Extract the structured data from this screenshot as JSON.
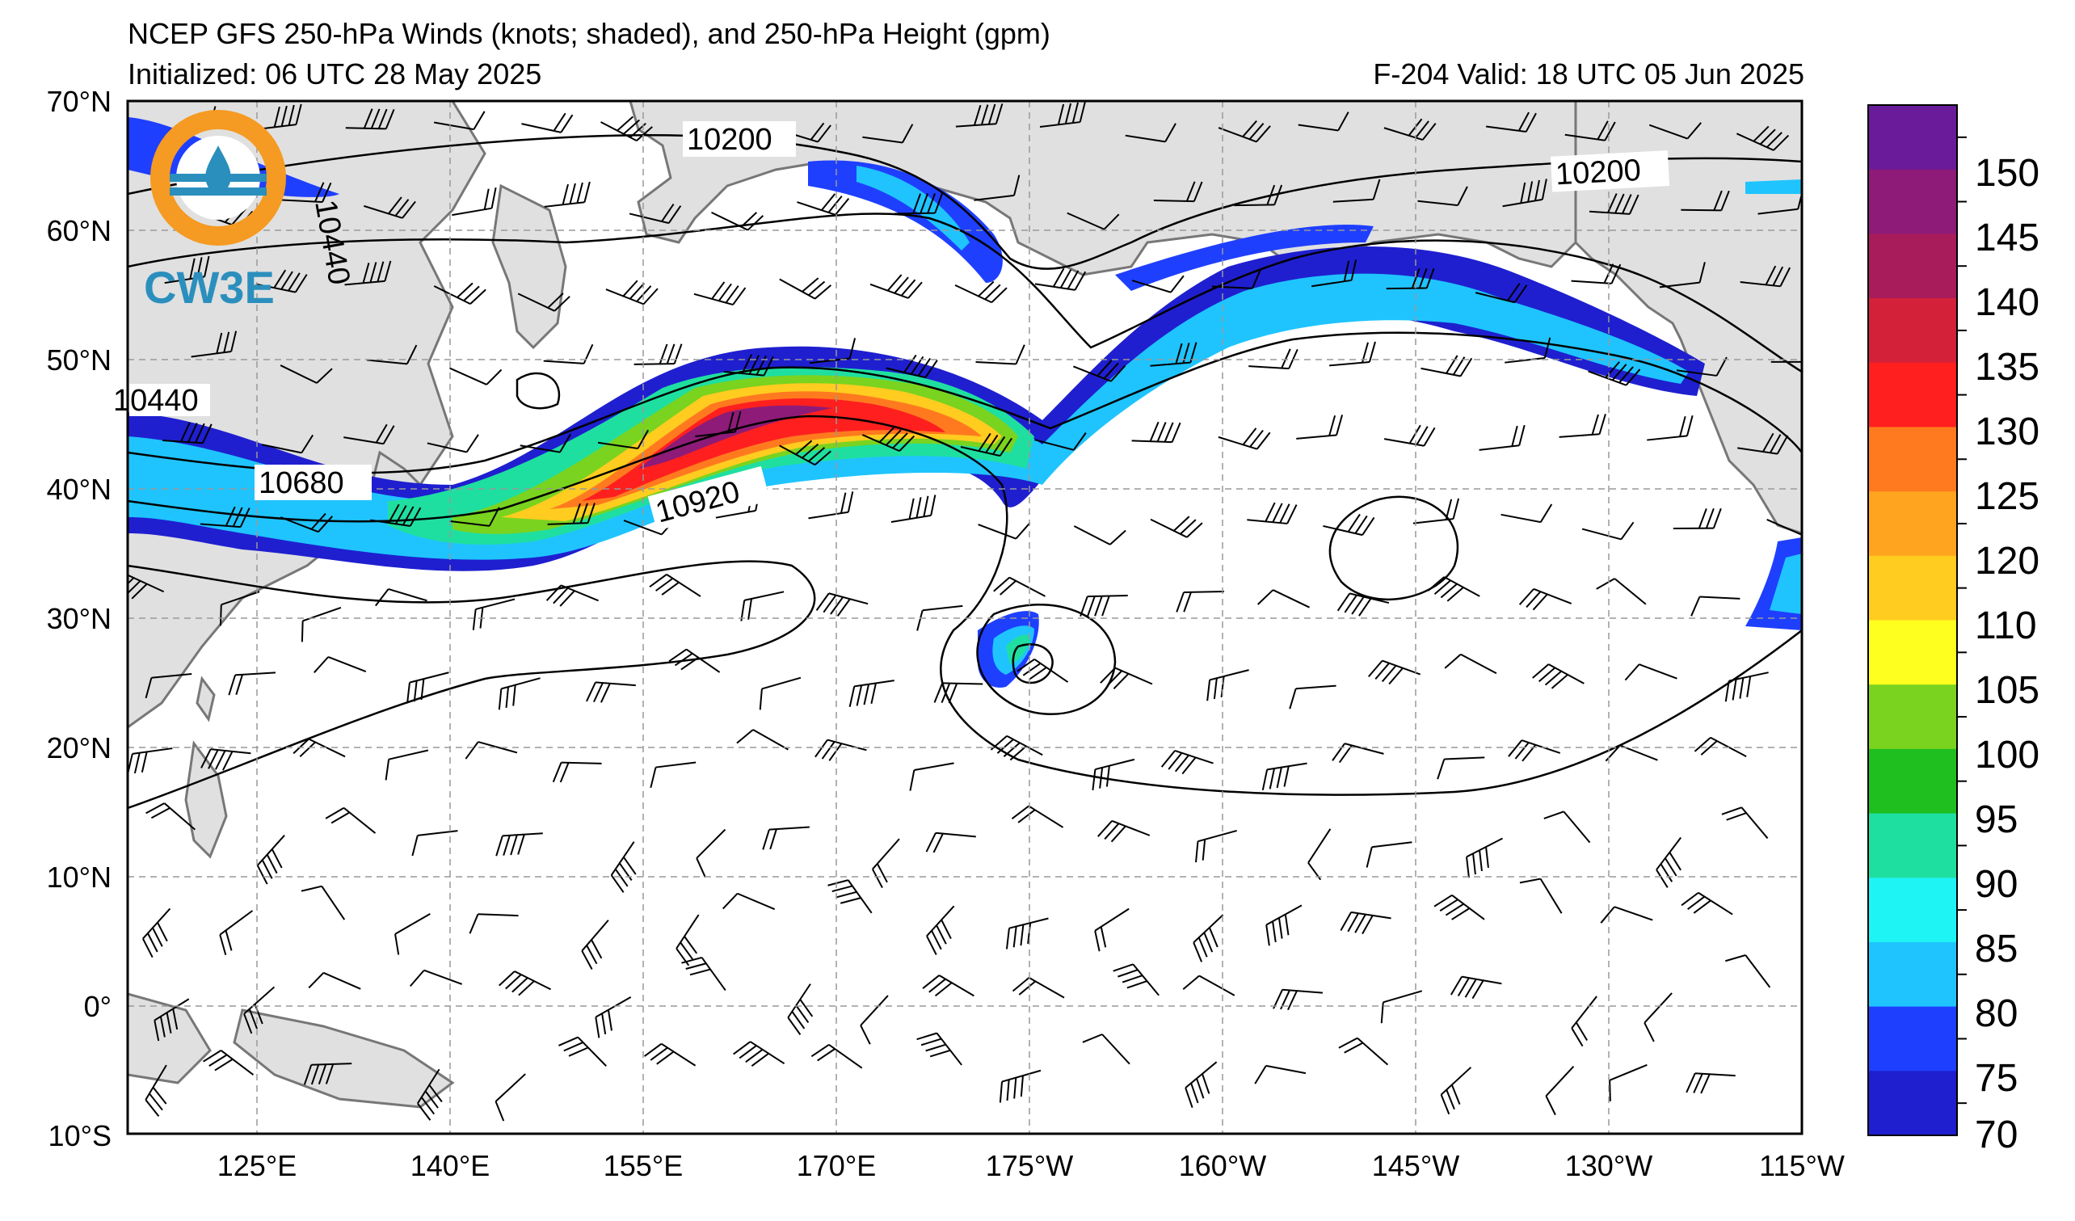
{
  "title": "NCEP GFS 250-hPa Winds (knots; shaded), and 250-hPa Height (gpm)",
  "initialized": "Initialized: 06 UTC 28 May 2025",
  "valid": "F-204  Valid: 18 UTC 05 Jun 2025",
  "logo": {
    "text": "CW3E",
    "icon": "cw3e-logo-icon"
  },
  "lat_labels": [
    "70°N",
    "60°N",
    "50°N",
    "40°N",
    "30°N",
    "20°N",
    "10°N",
    "0°",
    "10°S"
  ],
  "lon_labels": [
    "125°E",
    "140°E",
    "155°E",
    "170°E",
    "175°W",
    "160°W",
    "145°W",
    "130°W",
    "115°W"
  ],
  "contour_labels": [
    "10200",
    "10200",
    "10440",
    "10680",
    "10920",
    "10440"
  ],
  "colorbar": {
    "labels": [
      "150",
      "145",
      "140",
      "135",
      "130",
      "125",
      "120",
      "110",
      "105",
      "100",
      "95",
      "90",
      "85",
      "80",
      "75",
      "70"
    ],
    "colors": [
      "#6a1b9a",
      "#8e1b78",
      "#a81c5c",
      "#d4213a",
      "#ff1f1f",
      "#ff7a1f",
      "#ffa41f",
      "#ffcc1f",
      "#ffff1f",
      "#7ad31f",
      "#1fbf1f",
      "#1fdfa0",
      "#1ff4f4",
      "#1fc4ff",
      "#1f3fff",
      "#1f1fd0"
    ]
  },
  "colors": {
    "land": "#e0e0e0",
    "coast": "#777777",
    "grid": "#999999",
    "contour": "#000000"
  }
}
